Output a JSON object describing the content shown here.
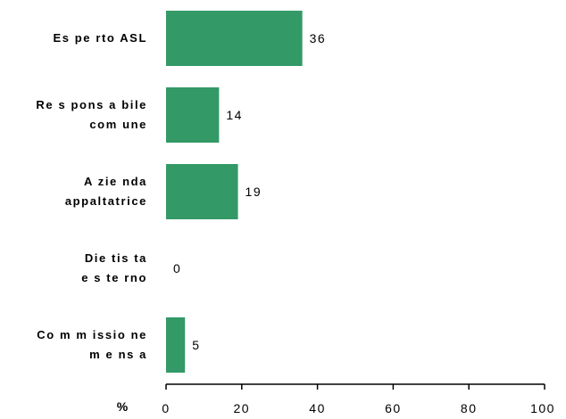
{
  "chart_data": {
    "type": "bar",
    "orientation": "horizontal",
    "categories": [
      [
        "Es pe rto ASL"
      ],
      [
        "Re s pons a bile",
        "com une"
      ],
      [
        "A zie nda",
        "appaltatrice"
      ],
      [
        "Die tis ta",
        "e s te rno"
      ],
      [
        "Co m m issio ne",
        "m e ns a"
      ]
    ],
    "values": [
      36,
      14,
      19,
      0,
      5
    ],
    "value_labels": [
      "36",
      "14",
      "19",
      "0",
      "5"
    ],
    "xlabel": "%",
    "xlim": [
      0,
      100
    ],
    "xticks": [
      0,
      20,
      40,
      60,
      80,
      100
    ],
    "xtick_labels": [
      "0",
      "20",
      "40",
      "60",
      "80",
      "100"
    ],
    "grid": false,
    "bar_color": "#339966"
  }
}
